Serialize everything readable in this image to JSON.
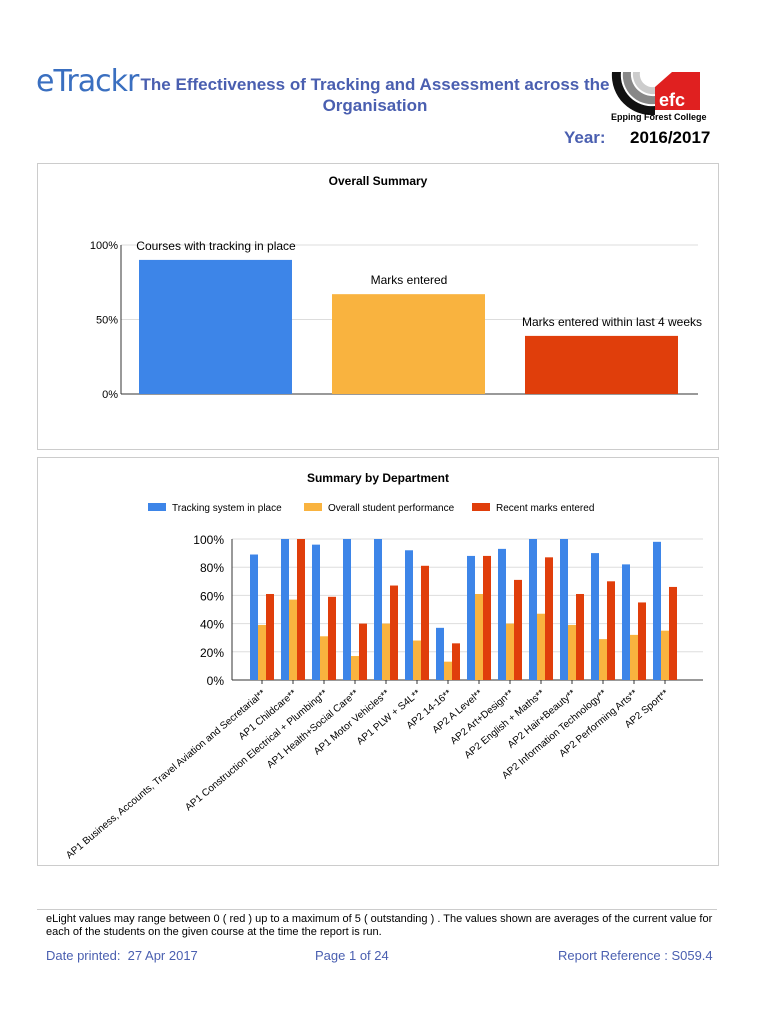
{
  "header": {
    "logo_text": "eTrackr",
    "title": "The Effectiveness of Tracking and Assessment across the Organisation",
    "college_logo_text": "efc",
    "college_name": "Epping Forest College",
    "year_label": "Year:",
    "year": "2016/2017"
  },
  "colors": {
    "blue": "#3d85e8",
    "orange": "#f9b33f",
    "red": "#e03e0b",
    "title": "#4a5fb0"
  },
  "chart_data": [
    {
      "type": "bar",
      "title": "Overall Summary",
      "categories": [
        "Courses with tracking in place",
        "Marks entered",
        "Marks entered within last 4 weeks"
      ],
      "values": [
        90,
        67,
        39
      ],
      "ylim": [
        0,
        100
      ],
      "yticks": [
        "0%",
        "50%",
        "100%"
      ],
      "grid": true,
      "legend": "none"
    },
    {
      "type": "bar",
      "title": "Summary by Department",
      "legend_position": "top",
      "categories": [
        "AP1 Business, Accounts, Travel Aviation and Secretarial**",
        "AP1 Childcare**",
        "AP1 Construction Electrical + Plumbing**",
        "AP1 Health+Social Care**",
        "AP1 Motor Vehicles**",
        "AP1 PLW + S4L**",
        "AP2 14-16**",
        "AP2 A Level**",
        "AP2 Art+Design**",
        "AP2 English + Maths**",
        "AP2 Hair+Beauty**",
        "AP2 Information Technology**",
        "AP2 Performing Arts**",
        "AP2 Sport**"
      ],
      "series": [
        {
          "name": "Tracking system in place",
          "values": [
            89,
            100,
            96,
            100,
            100,
            92,
            37,
            88,
            93,
            100,
            100,
            90,
            82,
            98
          ]
        },
        {
          "name": "Overall student performance",
          "values": [
            39,
            57,
            31,
            17,
            40,
            28,
            13,
            61,
            40,
            47,
            39,
            29,
            32,
            35
          ]
        },
        {
          "name": "Recent marks entered",
          "values": [
            61,
            100,
            59,
            40,
            67,
            81,
            26,
            88,
            71,
            87,
            61,
            70,
            55,
            66
          ]
        }
      ],
      "ylim": [
        0,
        100
      ],
      "yticks": [
        "0%",
        "20%",
        "40%",
        "60%",
        "80%",
        "100%"
      ],
      "grid": true
    }
  ],
  "footer": {
    "note": "eLight values may range between 0 ( red ) up to a maximum of 5 ( outstanding ) . The values shown are averages  of the current value for each of the students on the given course at the time the report is run.",
    "date_label": "Date printed:",
    "date": "27 Apr 2017",
    "page": "Page  1 of  24",
    "reference": "Report Reference : S059.4"
  }
}
